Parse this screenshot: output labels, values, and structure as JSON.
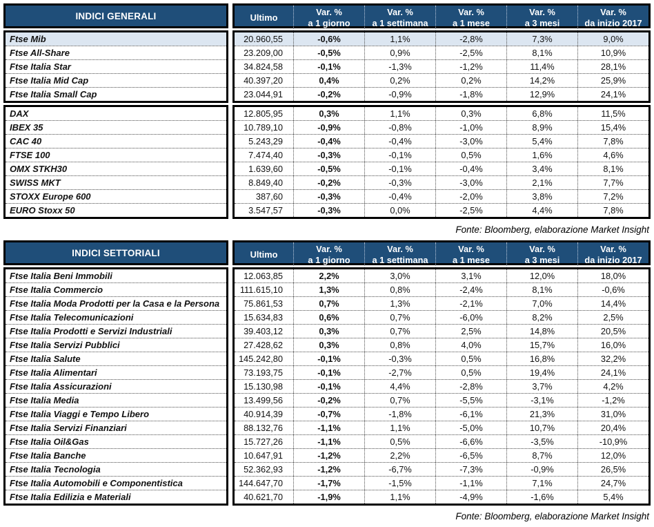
{
  "colors": {
    "header_bg": "#1F4E79",
    "highlight_row": "#DCE6F1"
  },
  "columns": {
    "ultimo": "Ultimo",
    "var": [
      {
        "line1": "Var. %",
        "line2": "a 1 giorno"
      },
      {
        "line1": "Var. %",
        "line2": "a 1 settimana"
      },
      {
        "line1": "Var. %",
        "line2": "a 1 mese"
      },
      {
        "line1": "Var. %",
        "line2": "a 3 mesi"
      },
      {
        "line1": "Var. %",
        "line2": "da inizio 2017"
      }
    ]
  },
  "source_note": "Fonte: Bloomberg, elaborazione Market Insight",
  "general": {
    "title": "INDICI GENERALI",
    "italy_rows": [
      {
        "name": "Ftse Mib",
        "ultimo": "20.960,55",
        "d1": "-0,6%",
        "w1": "1,1%",
        "m1": "-2,8%",
        "m3": "7,3%",
        "ytd": "9,0%"
      },
      {
        "name": "Ftse All-Share",
        "ultimo": "23.209,00",
        "d1": "-0,5%",
        "w1": "0,9%",
        "m1": "-2,5%",
        "m3": "8,1%",
        "ytd": "10,9%"
      },
      {
        "name": "Ftse Italia Star",
        "ultimo": "34.824,58",
        "d1": "-0,1%",
        "w1": "-1,3%",
        "m1": "-1,2%",
        "m3": "11,4%",
        "ytd": "28,1%"
      },
      {
        "name": "Ftse Italia Mid Cap",
        "ultimo": "40.397,20",
        "d1": "0,4%",
        "w1": "0,2%",
        "m1": "0,2%",
        "m3": "14,2%",
        "ytd": "25,9%"
      },
      {
        "name": "Ftse Italia Small Cap",
        "ultimo": "23.044,91",
        "d1": "-0,2%",
        "w1": "-0,9%",
        "m1": "-1,8%",
        "m3": "12,9%",
        "ytd": "24,1%"
      }
    ],
    "international_rows": [
      {
        "name": "DAX",
        "ultimo": "12.805,95",
        "d1": "0,3%",
        "w1": "1,1%",
        "m1": "0,3%",
        "m3": "6,8%",
        "ytd": "11,5%"
      },
      {
        "name": "IBEX 35",
        "ultimo": "10.789,10",
        "d1": "-0,9%",
        "w1": "-0,8%",
        "m1": "-1,0%",
        "m3": "8,9%",
        "ytd": "15,4%"
      },
      {
        "name": "CAC 40",
        "ultimo": "5.243,29",
        "d1": "-0,4%",
        "w1": "-0,4%",
        "m1": "-3,0%",
        "m3": "5,4%",
        "ytd": "7,8%"
      },
      {
        "name": "FTSE 100",
        "ultimo": "7.474,40",
        "d1": "-0,3%",
        "w1": "-0,1%",
        "m1": "0,5%",
        "m3": "1,6%",
        "ytd": "4,6%"
      },
      {
        "name": "OMX STKH30",
        "ultimo": "1.639,60",
        "d1": "-0,5%",
        "w1": "-0,1%",
        "m1": "-0,4%",
        "m3": "3,4%",
        "ytd": "8,1%"
      },
      {
        "name": "SWISS MKT",
        "ultimo": "8.849,40",
        "d1": "-0,2%",
        "w1": "-0,3%",
        "m1": "-3,0%",
        "m3": "2,1%",
        "ytd": "7,7%"
      },
      {
        "name": "STOXX Europe 600",
        "ultimo": "387,60",
        "d1": "-0,3%",
        "w1": "-0,4%",
        "m1": "-2,0%",
        "m3": "3,8%",
        "ytd": "7,2%"
      },
      {
        "name": "EURO Stoxx 50",
        "ultimo": "3.547,57",
        "d1": "-0,3%",
        "w1": "0,0%",
        "m1": "-2,5%",
        "m3": "4,4%",
        "ytd": "7,8%"
      }
    ]
  },
  "sector": {
    "title": "INDICI SETTORIALI",
    "rows": [
      {
        "name": "Ftse Italia Beni Immobili",
        "ultimo": "12.063,85",
        "d1": "2,2%",
        "w1": "3,0%",
        "m1": "3,1%",
        "m3": "12,0%",
        "ytd": "18,0%"
      },
      {
        "name": "Ftse Italia Commercio",
        "ultimo": "111.615,10",
        "d1": "1,3%",
        "w1": "0,8%",
        "m1": "-2,4%",
        "m3": "8,1%",
        "ytd": "-0,6%"
      },
      {
        "name": "Ftse Italia Moda Prodotti per la Casa e la Persona",
        "ultimo": "75.861,53",
        "d1": "0,7%",
        "w1": "1,3%",
        "m1": "-2,1%",
        "m3": "7,0%",
        "ytd": "14,4%"
      },
      {
        "name": "Ftse Italia Telecomunicazioni",
        "ultimo": "15.634,83",
        "d1": "0,6%",
        "w1": "0,7%",
        "m1": "-6,0%",
        "m3": "8,2%",
        "ytd": "2,5%"
      },
      {
        "name": "Ftse Italia Prodotti e Servizi Industriali",
        "ultimo": "39.403,12",
        "d1": "0,3%",
        "w1": "0,7%",
        "m1": "2,5%",
        "m3": "14,8%",
        "ytd": "20,5%"
      },
      {
        "name": "Ftse Italia Servizi Pubblici",
        "ultimo": "27.428,62",
        "d1": "0,3%",
        "w1": "0,8%",
        "m1": "4,0%",
        "m3": "15,7%",
        "ytd": "16,0%"
      },
      {
        "name": "Ftse Italia Salute",
        "ultimo": "145.242,80",
        "d1": "-0,1%",
        "w1": "-0,3%",
        "m1": "0,5%",
        "m3": "16,8%",
        "ytd": "32,2%"
      },
      {
        "name": "Ftse Italia Alimentari",
        "ultimo": "73.193,75",
        "d1": "-0,1%",
        "w1": "-2,7%",
        "m1": "0,5%",
        "m3": "19,4%",
        "ytd": "24,1%"
      },
      {
        "name": "Ftse Italia Assicurazioni",
        "ultimo": "15.130,98",
        "d1": "-0,1%",
        "w1": "4,4%",
        "m1": "-2,8%",
        "m3": "3,7%",
        "ytd": "4,2%"
      },
      {
        "name": "Ftse Italia Media",
        "ultimo": "13.499,56",
        "d1": "-0,2%",
        "w1": "0,7%",
        "m1": "-5,5%",
        "m3": "-3,1%",
        "ytd": "-1,2%"
      },
      {
        "name": "Ftse Italia Viaggi e Tempo Libero",
        "ultimo": "40.914,39",
        "d1": "-0,7%",
        "w1": "-1,8%",
        "m1": "-6,1%",
        "m3": "21,3%",
        "ytd": "31,0%"
      },
      {
        "name": "Ftse Italia Servizi Finanziari",
        "ultimo": "88.132,76",
        "d1": "-1,1%",
        "w1": "1,1%",
        "m1": "-5,0%",
        "m3": "10,7%",
        "ytd": "20,4%"
      },
      {
        "name": "Ftse Italia Oil&Gas",
        "ultimo": "15.727,26",
        "d1": "-1,1%",
        "w1": "0,5%",
        "m1": "-6,6%",
        "m3": "-3,5%",
        "ytd": "-10,9%"
      },
      {
        "name": "Ftse Italia Banche",
        "ultimo": "10.647,91",
        "d1": "-1,2%",
        "w1": "2,2%",
        "m1": "-6,5%",
        "m3": "8,7%",
        "ytd": "12,0%"
      },
      {
        "name": "Ftse Italia Tecnologia",
        "ultimo": "52.362,93",
        "d1": "-1,2%",
        "w1": "-6,7%",
        "m1": "-7,3%",
        "m3": "-0,9%",
        "ytd": "26,5%"
      },
      {
        "name": "Ftse Italia Automobili e Componentistica",
        "ultimo": "144.647,70",
        "d1": "-1,7%",
        "w1": "-1,5%",
        "m1": "-1,1%",
        "m3": "7,1%",
        "ytd": "24,7%"
      },
      {
        "name": "Ftse Italia Edilizia e Materiali",
        "ultimo": "40.621,70",
        "d1": "-1,9%",
        "w1": "1,1%",
        "m1": "-4,9%",
        "m3": "-1,6%",
        "ytd": "5,4%"
      }
    ]
  }
}
